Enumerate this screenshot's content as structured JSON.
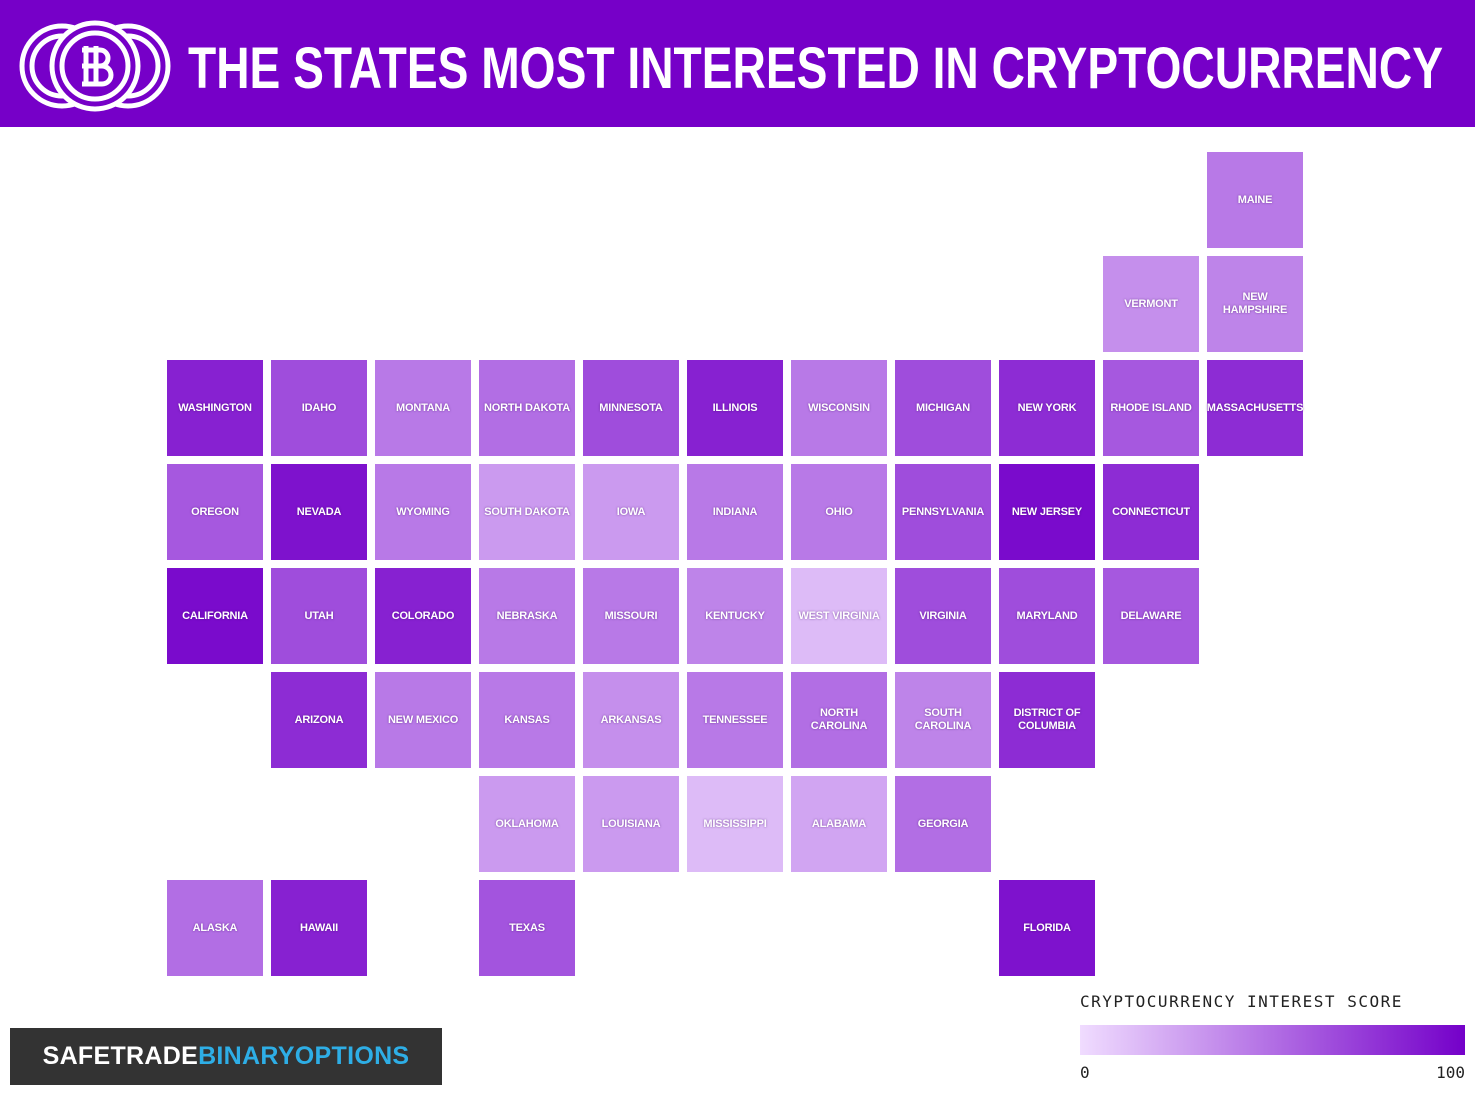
{
  "header": {
    "title": "THE STATES MOST INTERESTED IN CRYPTOCURRENCY"
  },
  "chart_data": {
    "type": "choropleth",
    "color_scale": [
      "#f0dcff",
      "#7400c9"
    ],
    "regions": [
      {
        "name": "WASHINGTON",
        "value": 85
      },
      {
        "name": "OREGON",
        "value": 60
      },
      {
        "name": "CALIFORNIA",
        "value": 95
      },
      {
        "name": "NEVADA",
        "value": 92
      },
      {
        "name": "IDAHO",
        "value": 65
      },
      {
        "name": "MONTANA",
        "value": 45
      },
      {
        "name": "WYOMING",
        "value": 45
      },
      {
        "name": "UTAH",
        "value": 65
      },
      {
        "name": "COLORADO",
        "value": 85
      },
      {
        "name": "ARIZONA",
        "value": 80
      },
      {
        "name": "NEW MEXICO",
        "value": 45
      },
      {
        "name": "NORTH DAKOTA",
        "value": 50
      },
      {
        "name": "SOUTH DAKOTA",
        "value": 30
      },
      {
        "name": "NEBRASKA",
        "value": 45
      },
      {
        "name": "KANSAS",
        "value": 45
      },
      {
        "name": "OKLAHOMA",
        "value": 30
      },
      {
        "name": "TEXAS",
        "value": 62
      },
      {
        "name": "MINNESOTA",
        "value": 65
      },
      {
        "name": "IOWA",
        "value": 30
      },
      {
        "name": "MISSOURI",
        "value": 45
      },
      {
        "name": "ARKANSAS",
        "value": 35
      },
      {
        "name": "LOUISIANA",
        "value": 30
      },
      {
        "name": "WISCONSIN",
        "value": 45
      },
      {
        "name": "ILLINOIS",
        "value": 85
      },
      {
        "name": "MICHIGAN",
        "value": 65
      },
      {
        "name": "INDIANA",
        "value": 45
      },
      {
        "name": "OHIO",
        "value": 45
      },
      {
        "name": "KENTUCKY",
        "value": 40
      },
      {
        "name": "TENNESSEE",
        "value": 45
      },
      {
        "name": "MISSISSIPPI",
        "value": 15
      },
      {
        "name": "ALABAMA",
        "value": 25
      },
      {
        "name": "GEORGIA",
        "value": 50
      },
      {
        "name": "FLORIDA",
        "value": 92
      },
      {
        "name": "SOUTH CAROLINA",
        "value": 40
      },
      {
        "name": "NORTH CAROLINA",
        "value": 50
      },
      {
        "name": "VIRGINIA",
        "value": 65
      },
      {
        "name": "WEST VIRGINIA",
        "value": 15
      },
      {
        "name": "PENNSYLVANIA",
        "value": 65
      },
      {
        "name": "NEW YORK",
        "value": 80
      },
      {
        "name": "VERMONT",
        "value": 35
      },
      {
        "name": "NEW HAMPSHIRE",
        "value": 40
      },
      {
        "name": "MAINE",
        "value": 45
      },
      {
        "name": "MASSACHUSETTS",
        "value": 80
      },
      {
        "name": "RHODE ISLAND",
        "value": 60
      },
      {
        "name": "CONNECTICUT",
        "value": 80
      },
      {
        "name": "NEW JERSEY",
        "value": 95
      },
      {
        "name": "DELAWARE",
        "value": 60
      },
      {
        "name": "MARYLAND",
        "value": 65
      },
      {
        "name": "DISTRICT OF COLUMBIA",
        "value": 80
      },
      {
        "name": "ALASKA",
        "value": 50
      },
      {
        "name": "HAWAII",
        "value": 85
      }
    ],
    "legend": {
      "title": "CRYPTOCURRENCY INTEREST SCORE",
      "range": [
        0,
        100
      ],
      "ticks": [
        0,
        100
      ]
    }
  },
  "brand": [
    "SAFETRADE",
    "BINARYOPTIONS"
  ]
}
